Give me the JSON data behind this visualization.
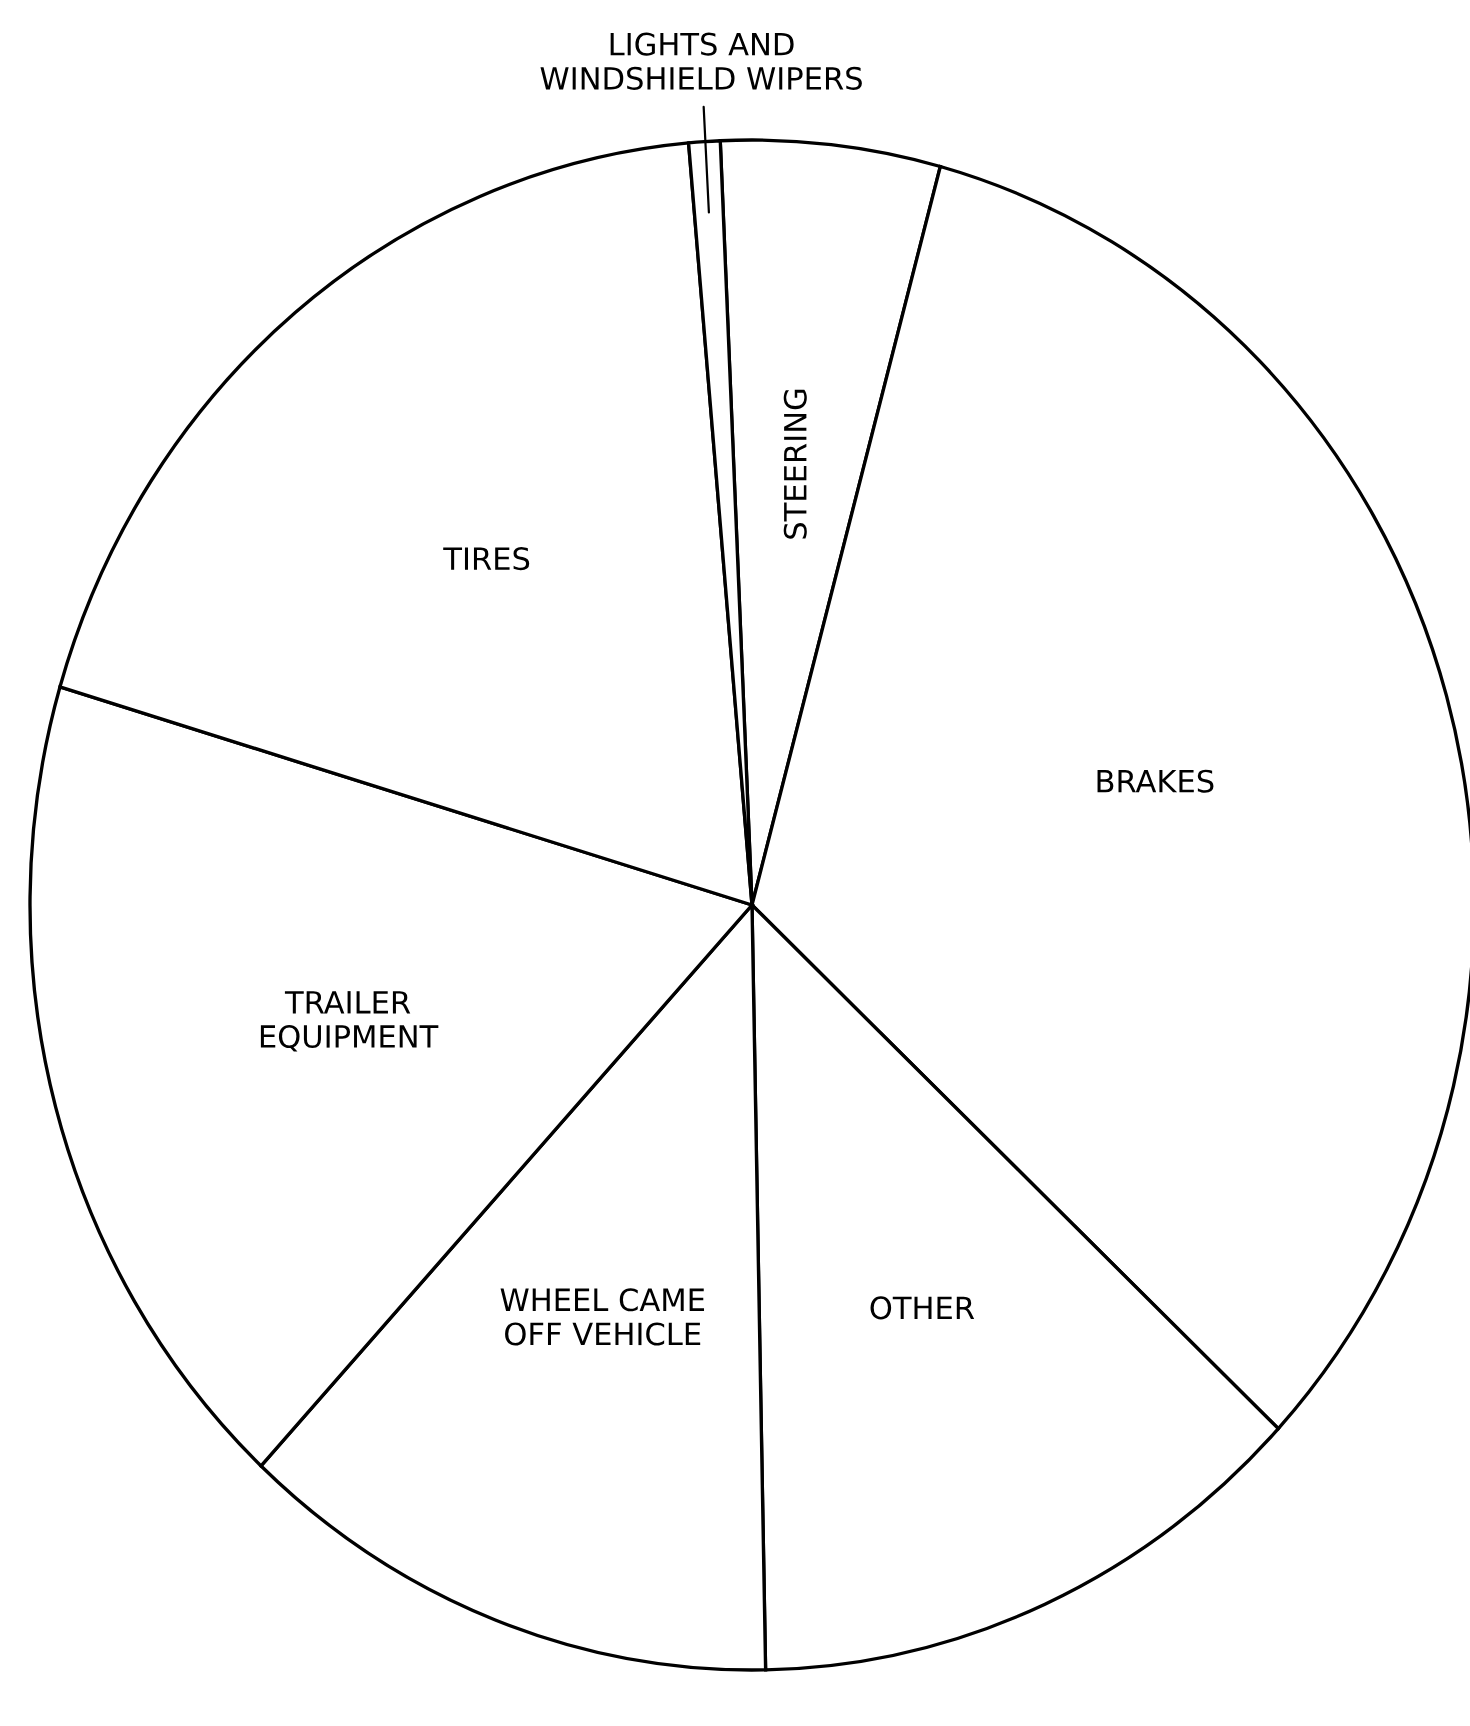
{
  "chart_data": {
    "type": "pie",
    "categories": [
      "STEERING",
      "BRAKES",
      "OTHER",
      "WHEEL CAME\nOFF VEHICLE",
      "TRAILER\nEQUIPMENT",
      "TIRES",
      "LIGHTS AND\nWINDSHIELD WIPERS"
    ],
    "values": [
      4.9,
      32.8,
      12.7,
      12.2,
      17.7,
      19.0,
      0.7
    ],
    "colors": [
      "#ffffff",
      "#ffffff",
      "#ffffff",
      "#ffffff",
      "#ffffff",
      "#ffffff",
      "#ffffff"
    ]
  }
}
